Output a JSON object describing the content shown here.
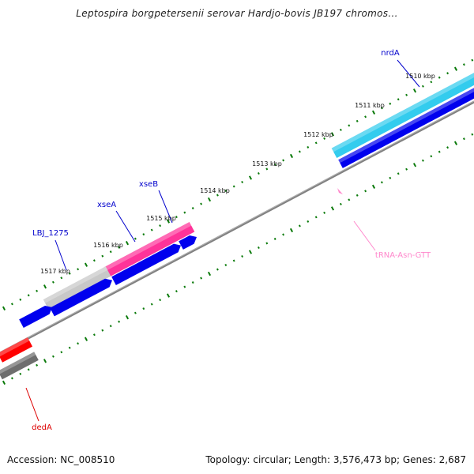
{
  "title": "Leptospira borgpetersenii serovar Hardjo-bovis JB197 chromos...",
  "footer": {
    "accession": "Accession: NC_008510",
    "summary": "Topology: circular; Length: 3,576,473 bp; Genes: 2,687"
  },
  "ticks": [
    "1510 kbp",
    "1511 kbp",
    "1512 kbp",
    "1513 kbp",
    "1514 kbp",
    "1515 kbp",
    "1516 kbp",
    "1517 kbp"
  ],
  "genes": [
    {
      "name": "nrdA",
      "label_color": "#0000cc"
    },
    {
      "name": "xseB",
      "label_color": "#0000cc"
    },
    {
      "name": "xseA",
      "label_color": "#0000cc"
    },
    {
      "name": "LBJ_1275",
      "label_color": "#0000cc"
    },
    {
      "name": "tRNA-Asn-GTT",
      "label_color": "#ff88cc"
    },
    {
      "name": "dedA",
      "label_color": "#dd0000"
    }
  ],
  "colors": {
    "backbone": "#808080",
    "cds_forward": "#0000ee",
    "cds_reverse": "#ff0000",
    "tick": "#0a7a0a",
    "nrdA_feature": "#33ccee",
    "xse_feature": "#ff3399",
    "hypothetical_feature": "#c8c8c8",
    "reverse_gray": "#6e6e6e",
    "trna": "#ff88cc"
  }
}
